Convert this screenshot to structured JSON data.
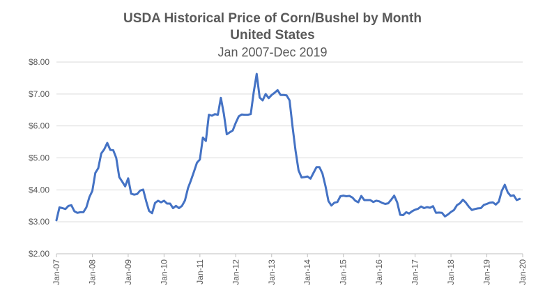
{
  "chart_data": {
    "type": "line",
    "title": "USDA Historical Price of Corn/Bushel by Month",
    "subtitle_line1": "United States",
    "subtitle_line2": "Jan 2007-Dec 2019",
    "xlabel": "",
    "ylabel": "",
    "ylim": [
      2,
      8
    ],
    "grid": true,
    "y_ticks": [
      2,
      3,
      4,
      5,
      6,
      7,
      8
    ],
    "y_tick_labels": [
      "$2.00",
      "$3.00",
      "$4.00",
      "$5.00",
      "$6.00",
      "$7.00",
      "$8.00"
    ],
    "x_tick_labels": [
      "Jan-07",
      "Jan-08",
      "Jan-09",
      "Jan-10",
      "Jan-11",
      "Jan-12",
      "Jan-13",
      "Jan-14",
      "Jan-15",
      "Jan-16",
      "Jan-17",
      "Jan-18",
      "Jan-19",
      "Jan-20"
    ],
    "start": "Jan-07",
    "series": [
      {
        "name": "Price of Corn/Bushel",
        "color": "#4472c4",
        "values": [
          3.05,
          3.45,
          3.43,
          3.4,
          3.5,
          3.52,
          3.33,
          3.28,
          3.3,
          3.3,
          3.45,
          3.77,
          3.97,
          4.53,
          4.68,
          5.14,
          5.27,
          5.47,
          5.25,
          5.24,
          5.0,
          4.4,
          4.26,
          4.11,
          4.36,
          3.88,
          3.85,
          3.87,
          3.98,
          4.01,
          3.65,
          3.34,
          3.27,
          3.59,
          3.66,
          3.61,
          3.66,
          3.57,
          3.57,
          3.43,
          3.5,
          3.43,
          3.5,
          3.67,
          4.05,
          4.3,
          4.57,
          4.85,
          4.95,
          5.64,
          5.53,
          6.35,
          6.32,
          6.37,
          6.35,
          6.88,
          6.38,
          5.74,
          5.8,
          5.86,
          6.1,
          6.3,
          6.36,
          6.35,
          6.35,
          6.37,
          7.05,
          7.63,
          6.89,
          6.8,
          7.0,
          6.87,
          6.97,
          7.04,
          7.12,
          6.97,
          6.97,
          6.96,
          6.8,
          5.97,
          5.22,
          4.61,
          4.39,
          4.4,
          4.42,
          4.35,
          4.53,
          4.71,
          4.71,
          4.51,
          4.12,
          3.65,
          3.51,
          3.6,
          3.62,
          3.8,
          3.82,
          3.8,
          3.81,
          3.76,
          3.66,
          3.61,
          3.81,
          3.68,
          3.68,
          3.68,
          3.62,
          3.66,
          3.64,
          3.59,
          3.56,
          3.58,
          3.69,
          3.82,
          3.61,
          3.22,
          3.21,
          3.3,
          3.26,
          3.33,
          3.38,
          3.41,
          3.48,
          3.43,
          3.46,
          3.44,
          3.49,
          3.28,
          3.29,
          3.28,
          3.17,
          3.23,
          3.31,
          3.37,
          3.52,
          3.58,
          3.69,
          3.6,
          3.47,
          3.37,
          3.4,
          3.42,
          3.43,
          3.53,
          3.56,
          3.6,
          3.61,
          3.54,
          3.63,
          3.97,
          4.16,
          3.92,
          3.81,
          3.83,
          3.68,
          3.72
        ]
      }
    ]
  }
}
